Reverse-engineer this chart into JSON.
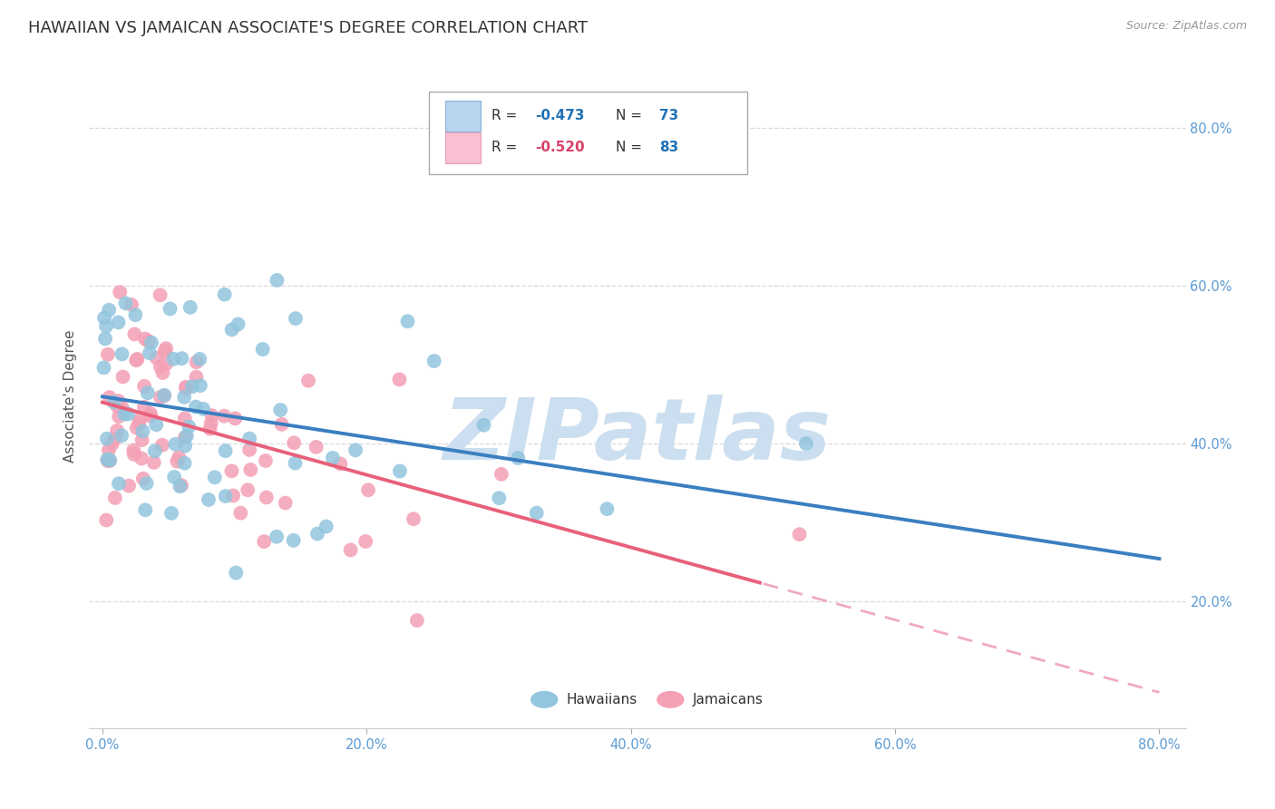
{
  "title": "HAWAIIAN VS JAMAICAN ASSOCIATE'S DEGREE CORRELATION CHART",
  "source": "Source: ZipAtlas.com",
  "ylabel": "Associate's Degree",
  "ytick_labels": [
    "20.0%",
    "40.0%",
    "60.0%",
    "80.0%"
  ],
  "ytick_values": [
    0.2,
    0.4,
    0.6,
    0.8
  ],
  "xtick_labels": [
    "0.0%",
    "20.0%",
    "40.0%",
    "60.0%",
    "80.0%"
  ],
  "xtick_values": [
    0.0,
    0.2,
    0.4,
    0.6,
    0.8
  ],
  "xmin": -0.01,
  "xmax": 0.82,
  "ymin": 0.04,
  "ymax": 0.88,
  "hawaiian_R": -0.473,
  "hawaiian_N": 73,
  "jamaican_R": -0.52,
  "jamaican_N": 83,
  "hawaiian_color": "#92c5de",
  "jamaican_color": "#f4a0b5",
  "hawaiian_line_color": "#3a7fc1",
  "jamaican_line_solid_color": "#e8607a",
  "jamaican_line_dashed_color": "#f0aabf",
  "watermark_text": "ZIPatlas",
  "watermark_color": "#ccdff0",
  "legend_box_color_hawaiian": "#b8d4ee",
  "legend_box_color_jamaican": "#f8c0d0",
  "title_fontsize": 13,
  "axis_label_fontsize": 11,
  "tick_fontsize": 10.5,
  "grid_color": "#d0d0d0",
  "background_color": "#ffffff",
  "hawaiian_seed": 12,
  "jamaican_seed": 77,
  "legend_R_color_blue": "#2171b5",
  "legend_R_color_pink": "#d94068",
  "legend_N_color": "#2171b5"
}
